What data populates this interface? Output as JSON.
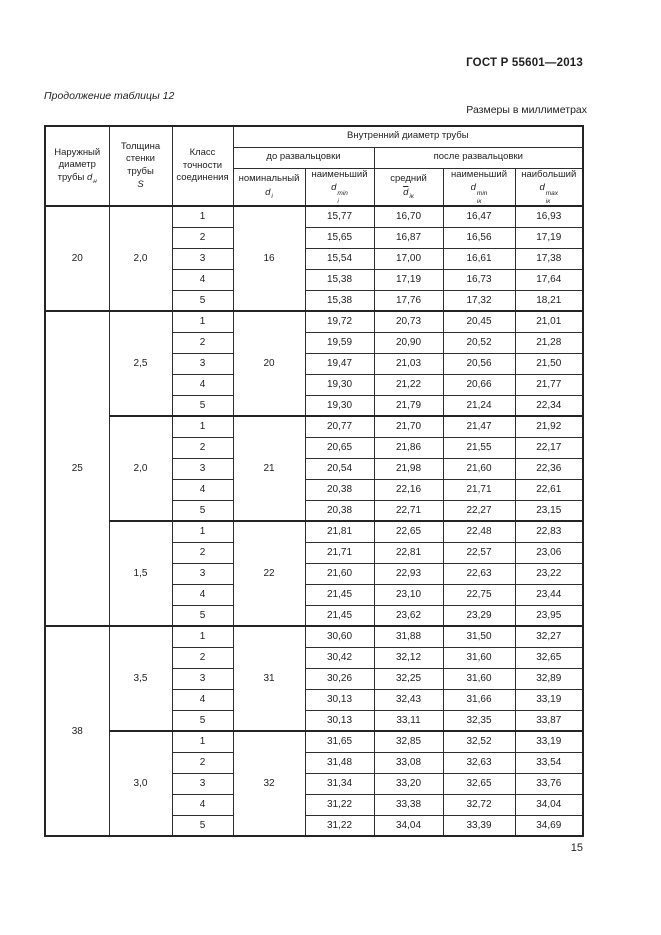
{
  "page": {
    "doc_number": "ГОСТ Р 55601—2013",
    "continuation": "Продолжение таблицы 12",
    "units_note": "Размеры в миллиметрах",
    "page_number": "15"
  },
  "table": {
    "columns": {
      "outer": {
        "line1": "Наружный",
        "line2": "диаметр",
        "line3": "трубы",
        "sym": "d",
        "sub": "н"
      },
      "thickness": {
        "line1": "Толщина",
        "line2": "стенки",
        "line3": "трубы",
        "sym": "S"
      },
      "accuracy": {
        "line1": "Класс",
        "line2": "точности",
        "line3": "соединения"
      },
      "inner_group": "Внутренний диаметр трубы",
      "before": "до развальцовки",
      "after": "после развальцовки",
      "nominal": {
        "label": "номинальный",
        "sym": "d",
        "sub": "i"
      },
      "min_before": {
        "label": "наименьший",
        "sym": "d",
        "sub": "i",
        "sup": "min"
      },
      "mean": {
        "label": "средний",
        "sym": "d",
        "sub": "iк"
      },
      "min_after": {
        "label": "наименьший",
        "sym": "d",
        "sub": "iк",
        "sup": "min"
      },
      "max_after": {
        "label": "наибольший",
        "sym": "d",
        "sub": "iк",
        "sup": "max"
      }
    },
    "sections": [
      {
        "outer": "20",
        "blocks": [
          {
            "thickness": "2,0",
            "nominal": "16",
            "rows": [
              [
                "1",
                "15,77",
                "16,70",
                "16,47",
                "16,93"
              ],
              [
                "2",
                "15,65",
                "16,87",
                "16,56",
                "17,19"
              ],
              [
                "3",
                "15,54",
                "17,00",
                "16,61",
                "17,38"
              ],
              [
                "4",
                "15,38",
                "17,19",
                "16,73",
                "17,64"
              ],
              [
                "5",
                "15,38",
                "17,76",
                "17,32",
                "18,21"
              ]
            ]
          }
        ]
      },
      {
        "outer": "25",
        "blocks": [
          {
            "thickness": "2,5",
            "nominal": "20",
            "rows": [
              [
                "1",
                "19,72",
                "20,73",
                "20,45",
                "21,01"
              ],
              [
                "2",
                "19,59",
                "20,90",
                "20,52",
                "21,28"
              ],
              [
                "3",
                "19,47",
                "21,03",
                "20,56",
                "21,50"
              ],
              [
                "4",
                "19,30",
                "21,22",
                "20,66",
                "21,77"
              ],
              [
                "5",
                "19,30",
                "21,79",
                "21,24",
                "22,34"
              ]
            ]
          },
          {
            "thickness": "2,0",
            "nominal": "21",
            "rows": [
              [
                "1",
                "20,77",
                "21,70",
                "21,47",
                "21,92"
              ],
              [
                "2",
                "20,65",
                "21,86",
                "21,55",
                "22,17"
              ],
              [
                "3",
                "20,54",
                "21,98",
                "21,60",
                "22,36"
              ],
              [
                "4",
                "20,38",
                "22,16",
                "21,71",
                "22,61"
              ],
              [
                "5",
                "20,38",
                "22,71",
                "22,27",
                "23,15"
              ]
            ]
          },
          {
            "thickness": "1,5",
            "nominal": "22",
            "rows": [
              [
                "1",
                "21,81",
                "22,65",
                "22,48",
                "22,83"
              ],
              [
                "2",
                "21,71",
                "22,81",
                "22,57",
                "23,06"
              ],
              [
                "3",
                "21,60",
                "22,93",
                "22,63",
                "23,22"
              ],
              [
                "4",
                "21,45",
                "23,10",
                "22,75",
                "23,44"
              ],
              [
                "5",
                "21,45",
                "23,62",
                "23,29",
                "23,95"
              ]
            ]
          }
        ]
      },
      {
        "outer": "38",
        "blocks": [
          {
            "thickness": "3,5",
            "nominal": "31",
            "rows": [
              [
                "1",
                "30,60",
                "31,88",
                "31,50",
                "32,27"
              ],
              [
                "2",
                "30,42",
                "32,12",
                "31,60",
                "32,65"
              ],
              [
                "3",
                "30,26",
                "32,25",
                "31,60",
                "32,89"
              ],
              [
                "4",
                "30,13",
                "32,43",
                "31,66",
                "33,19"
              ],
              [
                "5",
                "30,13",
                "33,11",
                "32,35",
                "33,87"
              ]
            ]
          },
          {
            "thickness": "3,0",
            "nominal": "32",
            "rows": [
              [
                "1",
                "31,65",
                "32,85",
                "32,52",
                "33,19"
              ],
              [
                "2",
                "31,48",
                "33,08",
                "32,63",
                "33,54"
              ],
              [
                "3",
                "31,34",
                "33,20",
                "32,65",
                "33,76"
              ],
              [
                "4",
                "31,22",
                "33,38",
                "32,72",
                "34,04"
              ],
              [
                "5",
                "31,22",
                "34,04",
                "33,39",
                "34,69"
              ]
            ]
          }
        ]
      }
    ]
  }
}
